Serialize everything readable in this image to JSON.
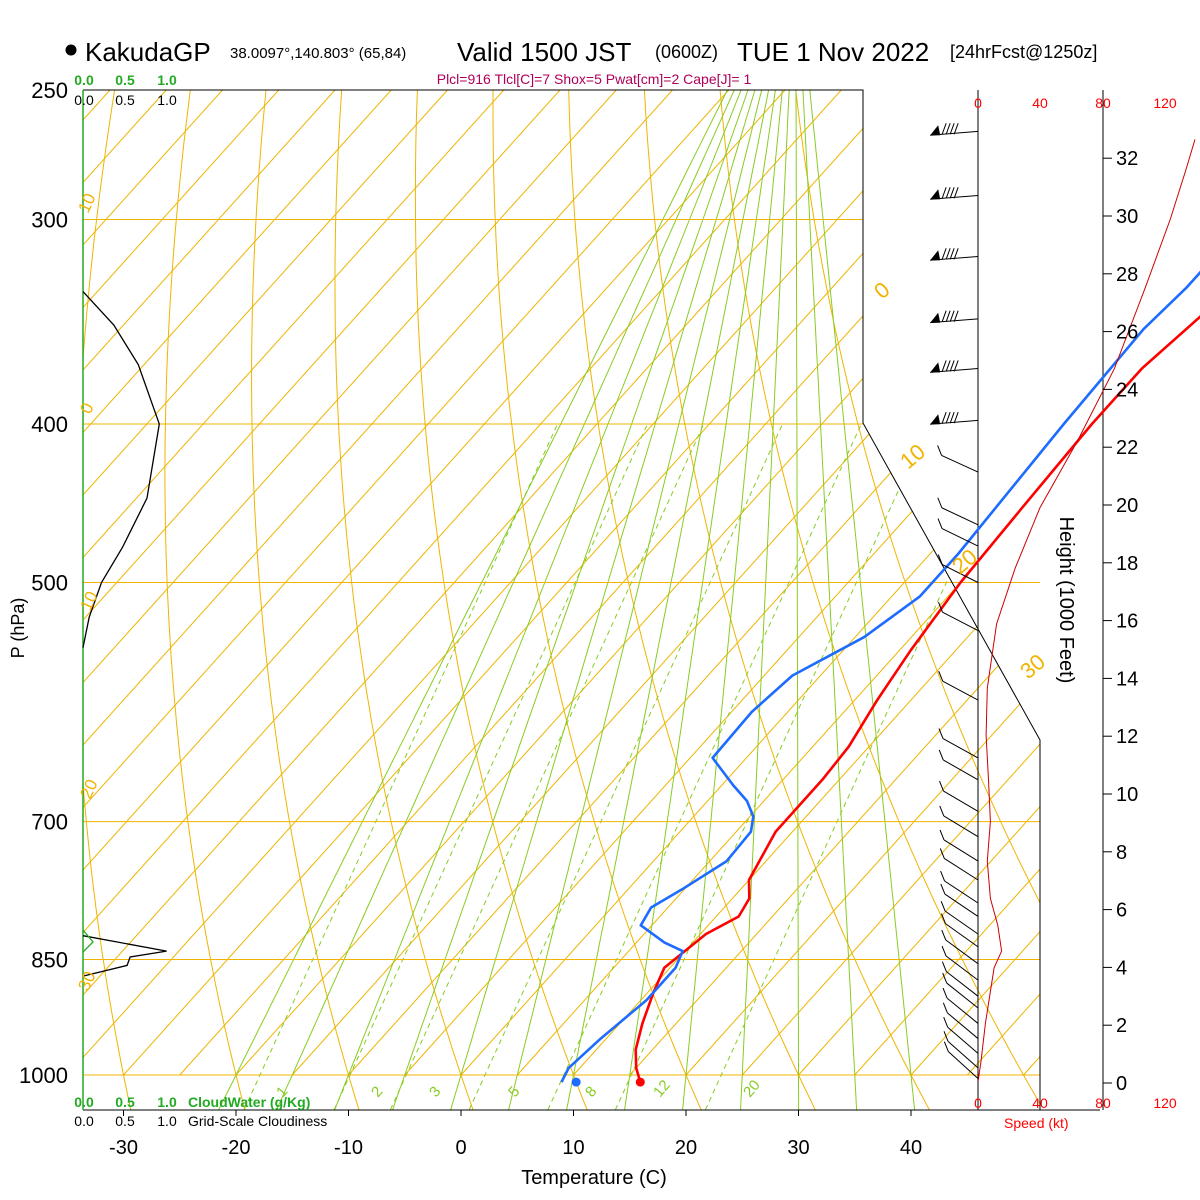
{
  "header": {
    "station": "KakudaGP",
    "coords": "38.0097°,140.803° (65,84)",
    "valid": "Valid 1500 JST",
    "utc": "(0600Z)",
    "date": "TUE 1 Nov 2022",
    "forecast": "[24hrFcst@1250z]",
    "indices": "Plcl=916 Tlcl[C]=7 Shox=5 Pwat[cm]=2 Cape[J]= 1"
  },
  "colors": {
    "temperature": "#ff0000",
    "dewpoint": "#1e6bff",
    "isotherm": "#f0b400",
    "dry_adiabat": "#88cc22",
    "cloudwater": "#22aa22",
    "speed": "#ff0000"
  },
  "chart_data": {
    "type": "line",
    "title": "Valid 1500 JST (0600Z) TUE 1 Nov 2022",
    "xlabel": "Temperature (C)",
    "ylabel": "P (hPa)",
    "y2label": "Height (1000 Feet)",
    "x_ticks": [
      "-30",
      "-20",
      "-10",
      "0",
      "10",
      "20",
      "30",
      "40"
    ],
    "y_ticks": [
      "250",
      "300",
      "400",
      "500",
      "700",
      "850",
      "1000"
    ],
    "height_ticks": [
      "0",
      "2",
      "4",
      "6",
      "8",
      "10",
      "12",
      "14",
      "16",
      "18",
      "20",
      "22",
      "24",
      "26",
      "28",
      "30",
      "32"
    ],
    "speed_ticks": [
      "0",
      "40",
      "80",
      "120"
    ],
    "speed_label": "Speed (kt)",
    "cloudwater_label": "CloudWater (g/Kg)",
    "cloudiness_label": "Grid-Scale Cloudiness",
    "fraction_ticks": [
      "0.0",
      "0.5",
      "1.0"
    ],
    "isotherm_labels": [
      "10",
      "0",
      "10",
      "20",
      "30"
    ],
    "skewed_labels": [
      "0",
      "10",
      "20",
      "30"
    ],
    "mixing_ratio_labels": [
      "1",
      "2",
      "3",
      "5",
      "8",
      "12",
      "20"
    ],
    "series": [
      {
        "key": "temperature",
        "points": [
          [
            16.5,
            1010
          ],
          [
            15,
            990
          ],
          [
            13.5,
            965
          ],
          [
            12,
            930
          ],
          [
            10.5,
            890
          ],
          [
            9.5,
            860
          ],
          [
            10.5,
            820
          ],
          [
            12,
            800
          ],
          [
            11.5,
            780
          ],
          [
            10,
            760
          ],
          [
            8.5,
            710
          ],
          [
            8.5,
            660
          ],
          [
            8.2,
            630
          ],
          [
            7,
            590
          ],
          [
            6,
            550
          ],
          [
            5,
            500
          ],
          [
            4.5,
            450
          ],
          [
            4,
            400
          ],
          [
            4,
            370
          ],
          [
            5,
            345
          ],
          [
            6,
            320
          ],
          [
            6,
            300
          ],
          [
            5.5,
            285
          ],
          [
            4.5,
            265
          ]
        ]
      },
      {
        "key": "dewpoint",
        "points": [
          [
            9.5,
            1010
          ],
          [
            9,
            990
          ],
          [
            9.5,
            950
          ],
          [
            10.5,
            900
          ],
          [
            10.5,
            860
          ],
          [
            9.8,
            840
          ],
          [
            7.5,
            830
          ],
          [
            4,
            810
          ],
          [
            3.5,
            790
          ],
          [
            4.8,
            770
          ],
          [
            6.5,
            740
          ],
          [
            6.3,
            710
          ],
          [
            5.3,
            695
          ],
          [
            3.5,
            680
          ],
          [
            1,
            665
          ],
          [
            -3,
            640
          ],
          [
            -3.2,
            600
          ],
          [
            -2.5,
            570
          ],
          [
            0.8,
            540
          ],
          [
            2.5,
            510
          ],
          [
            2.5,
            480
          ],
          [
            1.5,
            400
          ],
          [
            1,
            350
          ],
          [
            1.5,
            330
          ],
          [
            1.5,
            300
          ],
          [
            1,
            285
          ],
          [
            -0.5,
            270
          ],
          [
            -1.5,
            265
          ]
        ]
      }
    ],
    "height_profile": [
      [
        0,
        1010
      ],
      [
        0.5,
        980
      ],
      [
        1.2,
        930
      ],
      [
        2.6,
        860
      ],
      [
        3.8,
        840
      ],
      [
        3.2,
        810
      ],
      [
        2,
        780
      ],
      [
        1.5,
        740
      ],
      [
        2,
        700
      ],
      [
        1.7,
        660
      ],
      [
        1.3,
        620
      ],
      [
        1.5,
        580
      ],
      [
        3,
        530
      ],
      [
        6,
        490
      ],
      [
        10,
        450
      ],
      [
        16,
        410
      ],
      [
        22,
        370
      ],
      [
        27,
        330
      ],
      [
        31,
        300
      ],
      [
        33.5,
        280
      ],
      [
        35,
        268
      ]
    ],
    "cloudiness_profile": [
      [
        0.0,
        332
      ],
      [
        0.25,
        348
      ],
      [
        0.45,
        368
      ],
      [
        0.62,
        400
      ],
      [
        0.52,
        444
      ],
      [
        0.32,
        476
      ],
      [
        0.15,
        500
      ],
      [
        0.05,
        525
      ],
      [
        0.0,
        548
      ]
    ],
    "cloudiness_spike": [
      [
        0.0,
        822
      ],
      [
        0.55,
        840
      ],
      [
        0.31,
        847
      ],
      [
        0.29,
        857
      ],
      [
        0.0,
        870
      ]
    ],
    "wind_levels": [
      265,
      290,
      316,
      345,
      370,
      398,
      428,
      461,
      475,
      500,
      535,
      590,
      640,
      660,
      690,
      715,
      740,
      760,
      785,
      800,
      820,
      835,
      855,
      875,
      895,
      910,
      930,
      950,
      970,
      990,
      1005
    ]
  }
}
